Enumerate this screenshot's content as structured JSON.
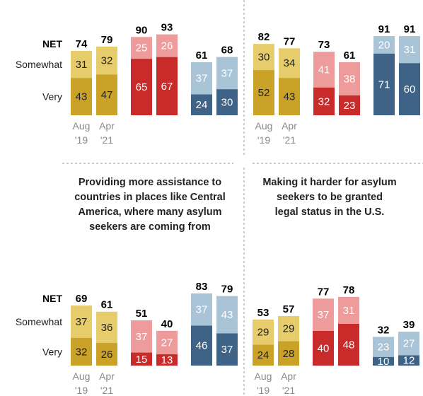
{
  "colors": {
    "gold_very": "#c9a227",
    "gold_somewhat": "#e6cc6a",
    "red_very": "#c92a2a",
    "red_somewhat": "#ee9b9b",
    "blue_very": "#3e6387",
    "blue_somewhat": "#a9c4d6"
  },
  "row_labels": {
    "net": "NET",
    "somewhat": "Somewhat",
    "very": "Very"
  },
  "chart_data": [
    {
      "type": "bar",
      "stacked": true,
      "title": "",
      "categories": [
        "Aug '19",
        "Apr '21"
      ],
      "time_labels": [
        [
          "Aug",
          "'19"
        ],
        [
          "Apr",
          "'21"
        ]
      ],
      "groups": [
        {
          "color": "gold",
          "very": [
            43,
            47
          ],
          "somewhat": [
            31,
            32
          ],
          "net": [
            74,
            79
          ]
        },
        {
          "color": "red",
          "very": [
            65,
            67
          ],
          "somewhat": [
            25,
            26
          ],
          "net": [
            90,
            93
          ]
        },
        {
          "color": "blue",
          "very": [
            24,
            30
          ],
          "somewhat": [
            37,
            37
          ],
          "net": [
            61,
            68
          ]
        }
      ]
    },
    {
      "type": "bar",
      "stacked": true,
      "title": "",
      "categories": [
        "Aug '19",
        "Apr '21"
      ],
      "time_labels": [
        [
          "Aug",
          "'19"
        ],
        [
          "Apr",
          "'21"
        ]
      ],
      "groups": [
        {
          "color": "gold",
          "very": [
            52,
            43
          ],
          "somewhat": [
            30,
            34
          ],
          "net": [
            82,
            77
          ]
        },
        {
          "color": "red",
          "very": [
            32,
            23
          ],
          "somewhat": [
            41,
            38
          ],
          "net": [
            73,
            61
          ]
        },
        {
          "color": "blue",
          "very": [
            71,
            60
          ],
          "somewhat": [
            20,
            31
          ],
          "net": [
            91,
            91
          ]
        }
      ]
    },
    {
      "type": "bar",
      "stacked": true,
      "title": "Providing more assistance to countries in places like Central America, where many asylum seekers are coming from",
      "title_lines": [
        "Providing more assistance to",
        "countries in places like Central",
        "America, where many asylum",
        "seekers are coming from"
      ],
      "categories": [
        "Aug '19",
        "Apr '21"
      ],
      "time_labels": [
        [
          "Aug",
          "'19"
        ],
        [
          "Apr",
          "'21"
        ]
      ],
      "groups": [
        {
          "color": "gold",
          "very": [
            32,
            26
          ],
          "somewhat": [
            37,
            36
          ],
          "net": [
            69,
            61
          ]
        },
        {
          "color": "red",
          "very": [
            15,
            13
          ],
          "somewhat": [
            37,
            27
          ],
          "net": [
            51,
            40
          ]
        },
        {
          "color": "blue",
          "very": [
            46,
            37
          ],
          "somewhat": [
            37,
            43
          ],
          "net": [
            83,
            79
          ]
        }
      ]
    },
    {
      "type": "bar",
      "stacked": true,
      "title": "Making it harder for asylum seekers to be granted legal status in the U.S.",
      "title_lines": [
        "Making it harder for asylum",
        "seekers to be granted",
        "legal status in the U.S."
      ],
      "categories": [
        "Aug '19",
        "Apr '21"
      ],
      "time_labels": [
        [
          "Aug",
          "'19"
        ],
        [
          "Apr",
          "'21"
        ]
      ],
      "groups": [
        {
          "color": "gold",
          "very": [
            24,
            28
          ],
          "somewhat": [
            29,
            29
          ],
          "net": [
            53,
            57
          ]
        },
        {
          "color": "red",
          "very": [
            40,
            48
          ],
          "somewhat": [
            37,
            31
          ],
          "net": [
            77,
            78
          ]
        },
        {
          "color": "blue",
          "very": [
            10,
            12
          ],
          "somewhat": [
            23,
            27
          ],
          "net": [
            32,
            39
          ]
        }
      ]
    }
  ]
}
